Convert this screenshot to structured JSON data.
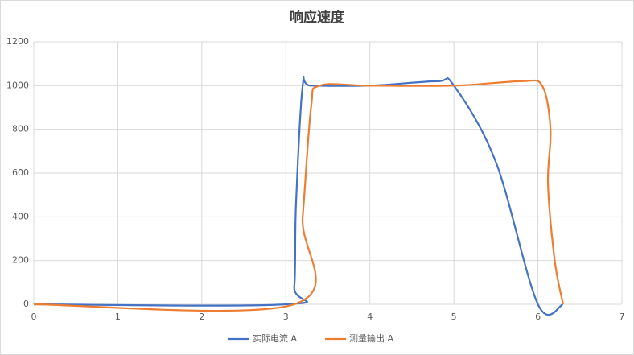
{
  "chart_data": {
    "type": "line",
    "title": "响应速度",
    "series": [
      {
        "name": "实际电流 A",
        "color": "#4472c4",
        "x": [
          0,
          3,
          3.1,
          3.12,
          3.2,
          3.3,
          4,
          4.8,
          5,
          5.5,
          6,
          6.3
        ],
        "values": [
          0,
          0,
          80,
          450,
          1000,
          1000,
          1000,
          1020,
          1000,
          650,
          0,
          0
        ]
      },
      {
        "name": "测量输出 A",
        "color": "#ed7d31",
        "x": [
          0,
          3.1,
          3.2,
          3.3,
          3.4,
          4,
          5,
          5.8,
          6.05,
          6.15,
          6.12,
          6.2,
          6.3
        ],
        "values": [
          0,
          0,
          400,
          900,
          1000,
          1000,
          1000,
          1020,
          1000,
          800,
          550,
          200,
          0
        ]
      }
    ],
    "xlim": [
      0,
      7
    ],
    "xticks": [
      0,
      1,
      2,
      3,
      4,
      5,
      6,
      7
    ],
    "ylim": [
      0,
      1200
    ],
    "yticks": [
      0,
      200,
      400,
      600,
      800,
      1000,
      1200
    ],
    "grid": true,
    "legend": "bottom"
  }
}
